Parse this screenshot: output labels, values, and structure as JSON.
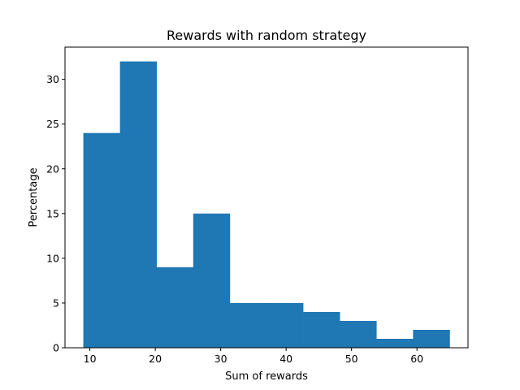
{
  "chart_data": {
    "type": "bar",
    "subtype": "histogram",
    "title": "Rewards with random strategy",
    "xlabel": "Sum of rewards",
    "ylabel": "Percentage",
    "bin_edges": [
      9.0,
      14.6,
      20.2,
      25.8,
      31.4,
      37.0,
      42.6,
      48.2,
      53.8,
      59.4,
      65.0
    ],
    "values": [
      24,
      32,
      9,
      15,
      5,
      5,
      4,
      3,
      1,
      2
    ],
    "xlim": [
      6.2,
      67.8
    ],
    "ylim": [
      0,
      33.6
    ],
    "xticks": [
      10,
      20,
      30,
      40,
      50,
      60
    ],
    "yticks": [
      0,
      5,
      10,
      15,
      20,
      25,
      30
    ],
    "color": "#1f77b4",
    "grid": false
  }
}
